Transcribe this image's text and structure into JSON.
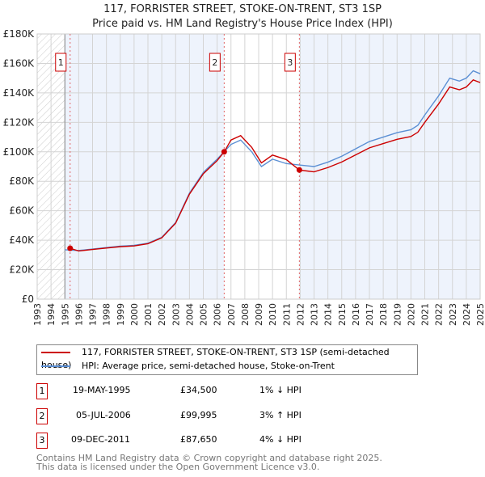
{
  "chart_data": {
    "type": "line",
    "title": "117, FORRISTER STREET, STOKE-ON-TRENT, ST3 1SP",
    "subtitle": "Price paid vs. HM Land Registry's House Price Index (HPI)",
    "xlim": [
      1993,
      2025
    ],
    "ylim": [
      0,
      180000
    ],
    "x_ticks": [
      "1993",
      "1994",
      "1995",
      "1996",
      "1997",
      "1998",
      "1999",
      "2000",
      "2001",
      "2002",
      "2003",
      "2004",
      "2005",
      "2006",
      "2007",
      "2008",
      "2009",
      "2010",
      "2011",
      "2012",
      "2013",
      "2014",
      "2015",
      "2016",
      "2017",
      "2018",
      "2019",
      "2020",
      "2021",
      "2022",
      "2023",
      "2024",
      "2025"
    ],
    "y_ticks": [
      "£0",
      "£20K",
      "£40K",
      "£60K",
      "£80K",
      "£100K",
      "£120K",
      "£140K",
      "£160K",
      "£180K"
    ],
    "series": [
      {
        "name": "117, FORRISTER STREET, STOKE-ON-TRENT, ST3 1SP (semi-detached house)",
        "color": "#cc0000",
        "x": [
          1995.38,
          1996,
          1997,
          1998,
          1999,
          2000,
          2001,
          2002,
          2003,
          2004,
          2005,
          2006,
          2006.51,
          2007,
          2007.7,
          2008.5,
          2009.2,
          2010,
          2011,
          2011.94,
          2013,
          2014,
          2015,
          2016,
          2017,
          2018,
          2019,
          2020,
          2020.5,
          2021,
          2022,
          2022.8,
          2023.5,
          2024,
          2024.5,
          2025
        ],
        "y": [
          34500,
          32700,
          33700,
          34700,
          35600,
          36100,
          37600,
          41600,
          51500,
          71300,
          85100,
          94000,
          99995,
          108000,
          111000,
          103000,
          92500,
          97800,
          94700,
          87650,
          86400,
          89300,
          93100,
          97900,
          102700,
          105600,
          108500,
          110400,
          113300,
          120000,
          132500,
          144000,
          142100,
          144000,
          148800,
          147000
        ]
      },
      {
        "name": "HPI: Average price, semi-detached house, Stoke-on-Trent",
        "color": "#5b8fd4",
        "x": [
          1995,
          1996,
          1997,
          1998,
          1999,
          2000,
          2001,
          2002,
          2003,
          2004,
          2005,
          2006,
          2007,
          2007.7,
          2008.5,
          2009.2,
          2010,
          2011,
          2012,
          2013,
          2014,
          2015,
          2016,
          2017,
          2018,
          2019,
          2020,
          2020.5,
          2021,
          2022,
          2022.8,
          2023.5,
          2024,
          2024.5,
          2025
        ],
        "y": [
          33500,
          33000,
          34000,
          35000,
          36000,
          36500,
          38000,
          42000,
          52000,
          72000,
          86000,
          95000,
          105000,
          108000,
          100000,
          90000,
          95000,
          92000,
          91000,
          90000,
          93000,
          97000,
          102000,
          107000,
          110000,
          113000,
          115000,
          118000,
          125000,
          138000,
          150000,
          148000,
          150000,
          155000,
          153000
        ]
      }
    ],
    "sales": [
      {
        "label": "1",
        "date": "19-MAY-1995",
        "x": 1995.38,
        "price": "£34,500",
        "value": 34500,
        "hpi": "1% ↓ HPI"
      },
      {
        "label": "2",
        "date": "05-JUL-2006",
        "x": 2006.51,
        "price": "£99,995",
        "value": 99995,
        "hpi": "3% ↑ HPI"
      },
      {
        "label": "3",
        "date": "09-DEC-2011",
        "x": 2011.94,
        "price": "£87,650",
        "value": 87650,
        "hpi": "4% ↓ HPI"
      }
    ]
  },
  "footer": [
    "Contains HM Land Registry data © Crown copyright and database right 2025.",
    "This data is licensed under the Open Government Licence v3.0."
  ]
}
